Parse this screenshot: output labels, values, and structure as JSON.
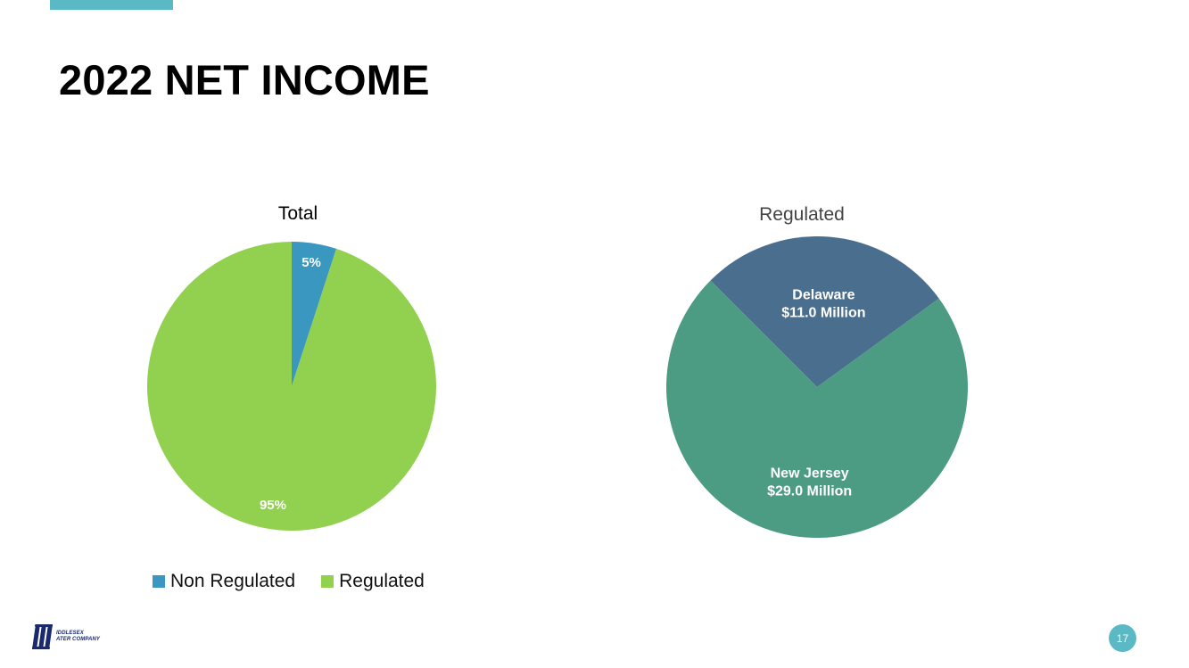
{
  "slide": {
    "title": "2022 NET INCOME",
    "page_number": "17",
    "logo": {
      "line1": "IDDLESEX",
      "line2": "ATER COMPANY"
    },
    "accent_color": "#5bb9c6"
  },
  "chart_data": [
    {
      "type": "pie",
      "title": "Total",
      "series": [
        {
          "values": [
            5,
            95
          ]
        }
      ],
      "categories": [
        "Non Regulated",
        "Regulated"
      ],
      "slices": [
        {
          "label": "Non Regulated",
          "value": 5,
          "data_label": "5%",
          "color": "#3a97bf"
        },
        {
          "label": "Regulated",
          "value": 95,
          "data_label": "95%",
          "color": "#92d050"
        }
      ],
      "legend": {
        "placement": "bottom",
        "entries": [
          "Non Regulated",
          "Regulated"
        ]
      }
    },
    {
      "type": "pie",
      "title": "Regulated",
      "categories": [
        "Delaware",
        "New Jersey"
      ],
      "slices": [
        {
          "label": "Delaware",
          "value": 11.0,
          "data_label": "$11.0 Million",
          "color": "#4a6e8e"
        },
        {
          "label": "New Jersey",
          "value": 29.0,
          "data_label": "$29.0 Million",
          "color": "#4c9b83"
        }
      ],
      "units": "Million",
      "legend": {
        "placement": "none"
      }
    }
  ]
}
